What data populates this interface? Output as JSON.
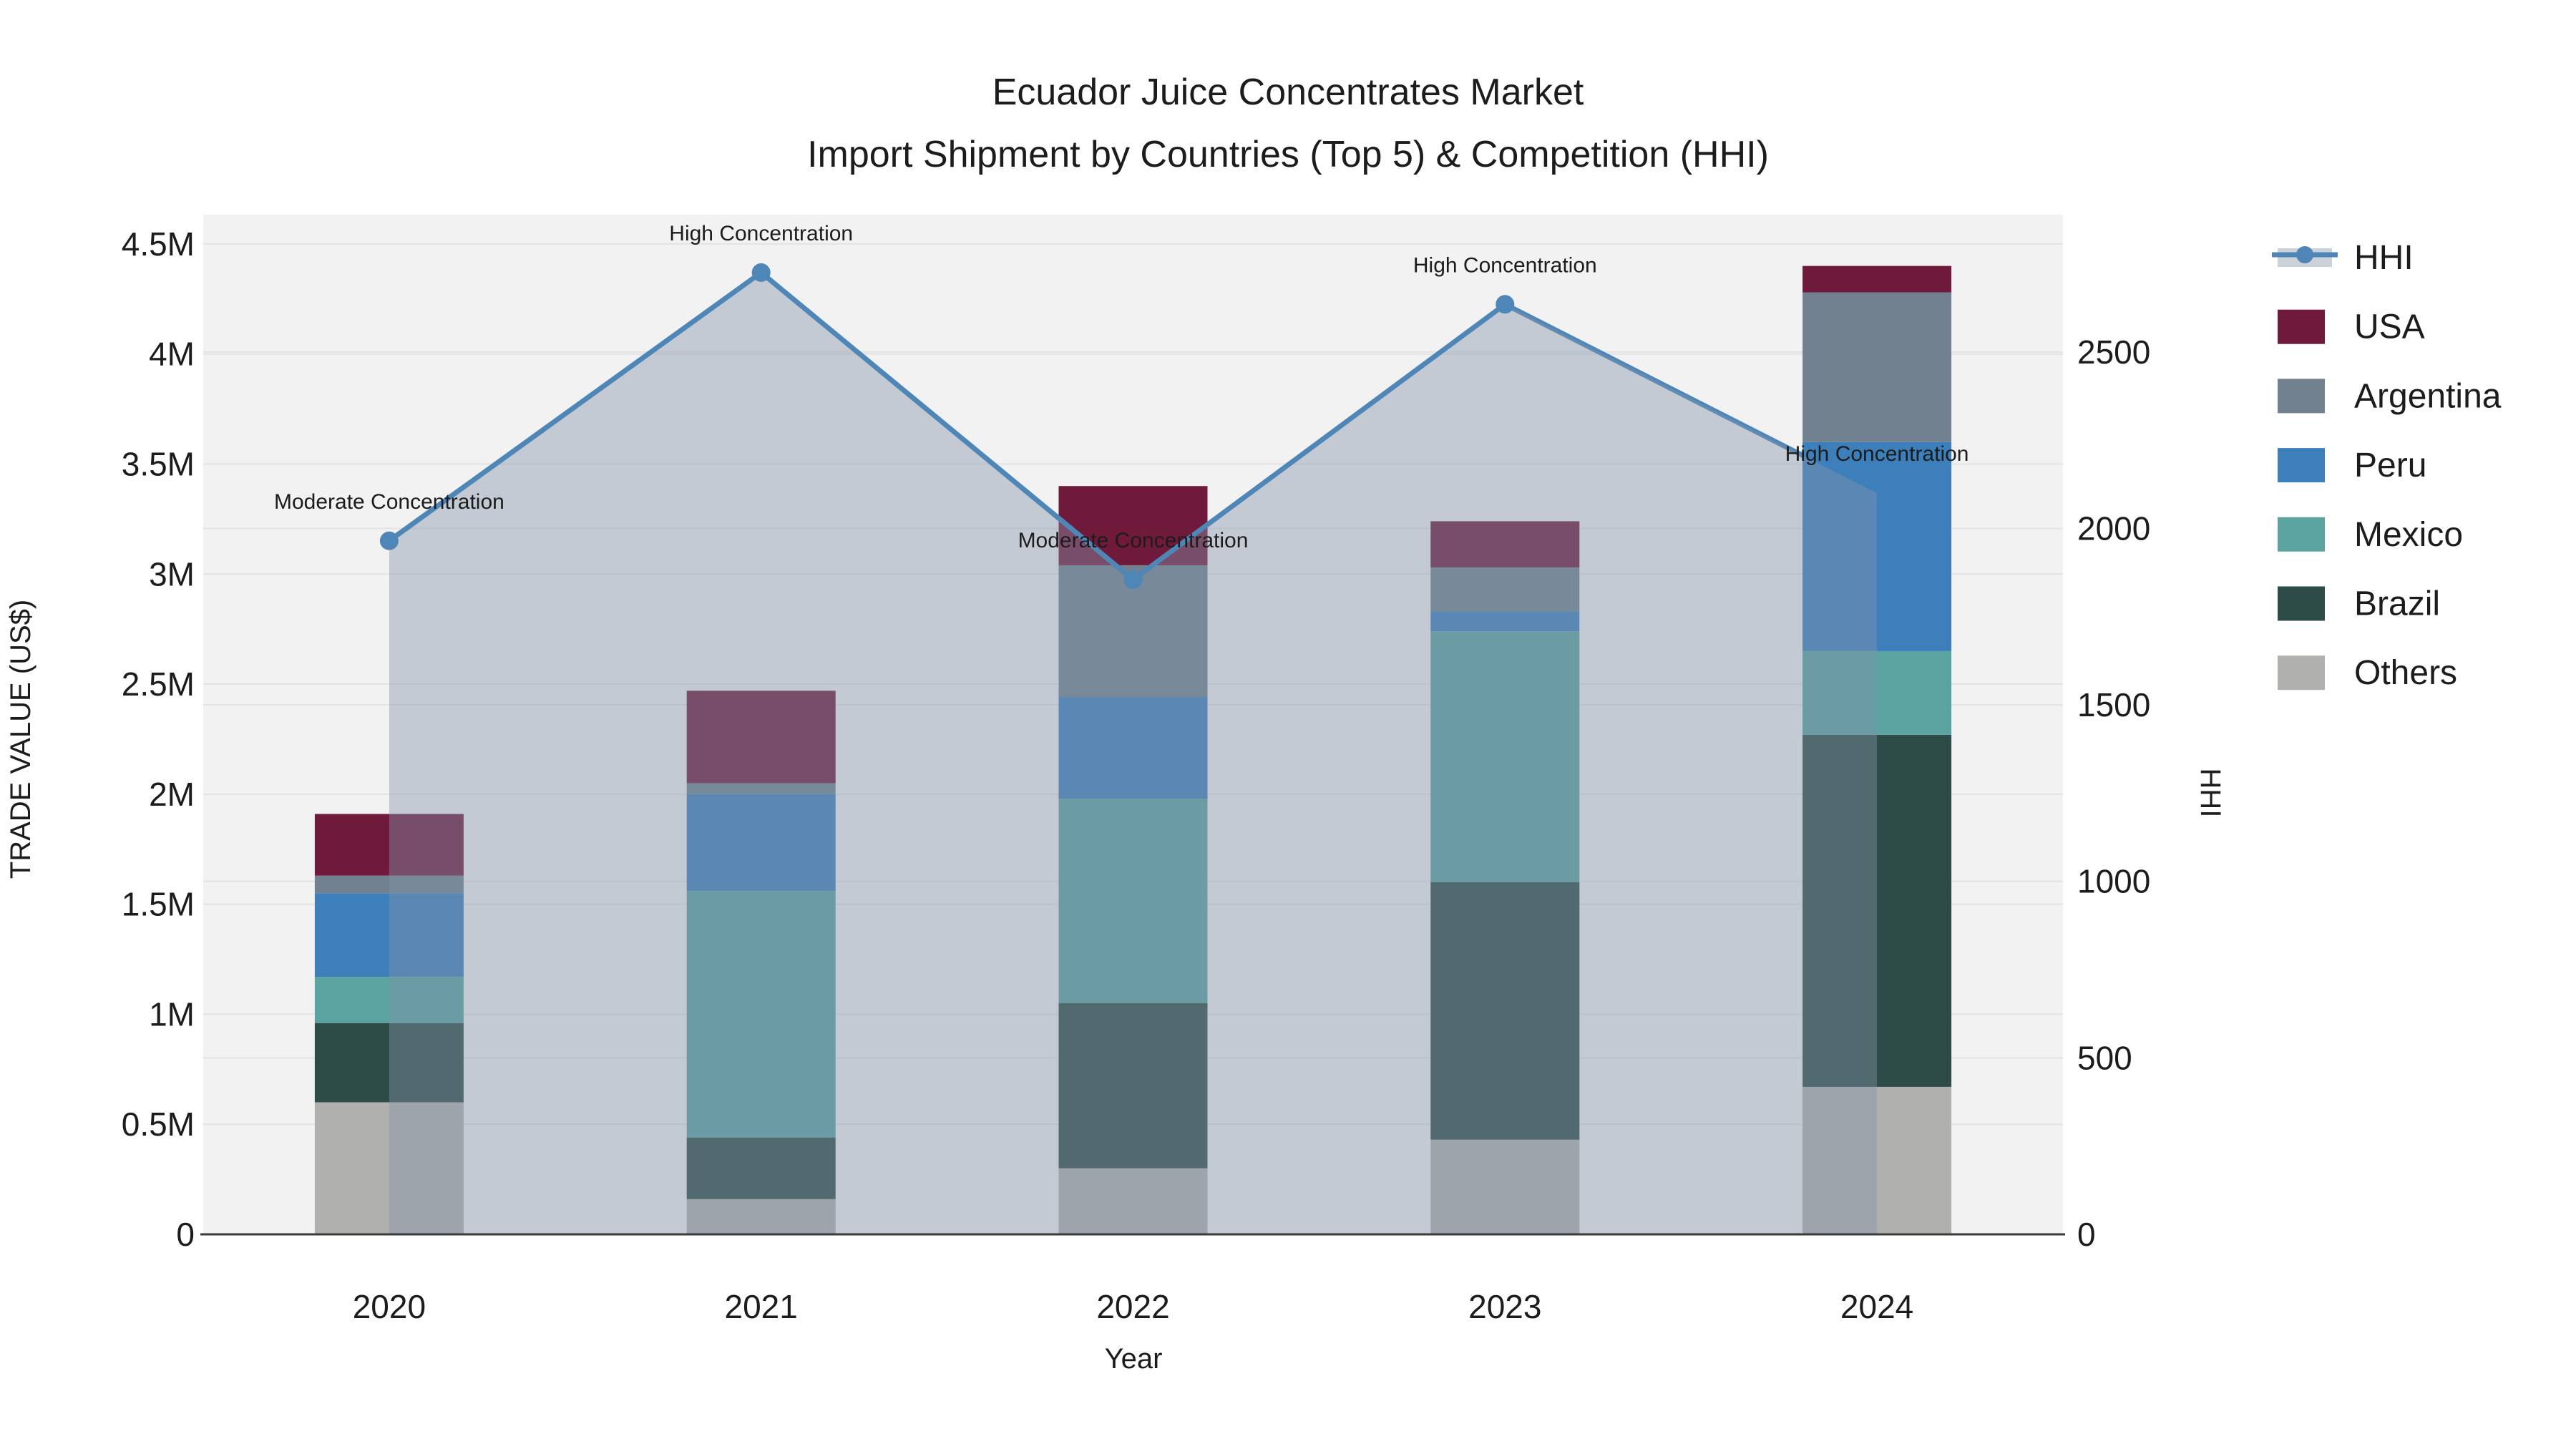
{
  "chart_data": {
    "type": "bar+line",
    "title": [
      "Ecuador Juice Concentrates Market",
      "Import Shipment by Countries (Top 5) & Competition (HHI)"
    ],
    "xlabel": "Year",
    "ylabel": "TRADE VALUE (US$)",
    "y2label": "HHI",
    "categories": [
      "2020",
      "2021",
      "2022",
      "2023",
      "2024"
    ],
    "bar_series": [
      {
        "name": "Others",
        "color": "#b0b0ae",
        "values_musd": [
          0.6,
          0.16,
          0.3,
          0.43,
          0.67
        ]
      },
      {
        "name": "Brazil",
        "color": "#2e4c47",
        "values_musd": [
          0.36,
          0.28,
          0.75,
          1.17,
          1.6
        ]
      },
      {
        "name": "Mexico",
        "color": "#5ba3a0",
        "values_musd": [
          0.21,
          1.12,
          0.93,
          1.14,
          0.38
        ]
      },
      {
        "name": "Peru",
        "color": "#3d7fba",
        "values_musd": [
          0.38,
          0.44,
          0.46,
          0.09,
          0.95
        ]
      },
      {
        "name": "Argentina",
        "color": "#71818f",
        "values_musd": [
          0.08,
          0.05,
          0.6,
          0.2,
          0.68
        ]
      },
      {
        "name": "USA",
        "color": "#701a3b",
        "values_musd": [
          0.28,
          0.42,
          0.36,
          0.21,
          0.12
        ]
      }
    ],
    "line_series": {
      "name": "HHI",
      "color": "#4e86b8",
      "fill_color": "rgba(130,148,170,0.42)",
      "values": [
        1965,
        2725,
        1855,
        2635,
        2100
      ]
    },
    "annotations": [
      {
        "year": "2020",
        "text": "Moderate Concentration"
      },
      {
        "year": "2021",
        "text": "High Concentration"
      },
      {
        "year": "2022",
        "text": "Moderate Concentration"
      },
      {
        "year": "2023",
        "text": "High Concentration"
      },
      {
        "year": "2024",
        "text": "High Concentration"
      }
    ],
    "ylim": [
      0,
      4.633
    ],
    "y2lim": [
      0,
      2889
    ],
    "ytick_values": [
      0,
      0.5,
      1,
      1.5,
      2,
      2.5,
      3,
      3.5,
      4,
      4.5
    ],
    "ytick_labels": [
      "0",
      "0.5M",
      "1M",
      "1.5M",
      "2M",
      "2.5M",
      "3M",
      "3.5M",
      "4M",
      "4.5M"
    ],
    "y2tick_values": [
      0,
      500,
      1000,
      1500,
      2000,
      2500
    ],
    "y2tick_labels": [
      "0",
      "500",
      "1000",
      "1500",
      "2000",
      "2500"
    ],
    "grid_on": true,
    "legend_position": "right",
    "legend": [
      {
        "label": "HHI",
        "type": "line"
      },
      {
        "label": "USA",
        "type": "swatch",
        "color": "#701a3b"
      },
      {
        "label": "Argentina",
        "type": "swatch",
        "color": "#71818f"
      },
      {
        "label": "Peru",
        "type": "swatch",
        "color": "#3d7fba"
      },
      {
        "label": "Mexico",
        "type": "swatch",
        "color": "#5ba3a0"
      },
      {
        "label": "Brazil",
        "type": "swatch",
        "color": "#2e4c47"
      },
      {
        "label": "Others",
        "type": "swatch",
        "color": "#b0b0ae"
      }
    ],
    "colors": {
      "plot_bg": "#f2f2f2",
      "gridline": "#e3e3e3",
      "axis_line": "#3a3a3a",
      "text": "#1c1c1c",
      "hhi_legend_band": "#ccd2da"
    }
  }
}
